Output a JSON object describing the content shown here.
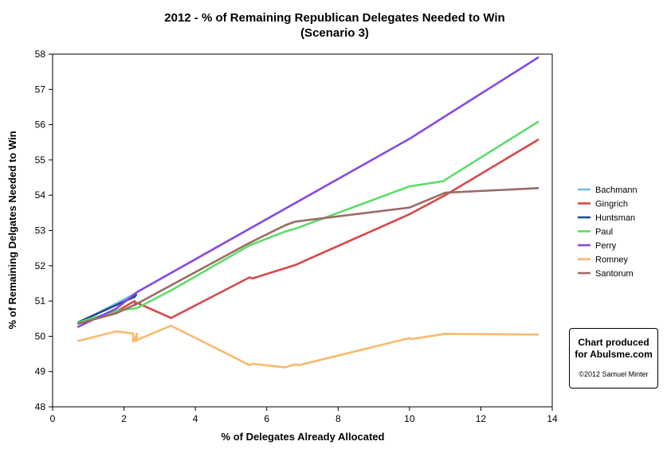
{
  "chart_data": {
    "type": "line",
    "title": "2012 - % of Remaining Republican Delegates Needed to Win",
    "subtitle": "(Scenario 3)",
    "xlabel": "% of Delegates Already Allocated",
    "ylabel": "% of Remaining Delgates Needed to Win",
    "xlim": [
      0,
      14
    ],
    "ylim": [
      48,
      58
    ],
    "x_ticks": [
      "0",
      "2",
      "4",
      "6",
      "8",
      "10",
      "12",
      "14"
    ],
    "y_ticks": [
      "48",
      "49",
      "50",
      "51",
      "52",
      "53",
      "54",
      "55",
      "56",
      "57",
      "58"
    ],
    "grid": false,
    "legend_position": "right",
    "series": [
      {
        "name": "Bachmann",
        "color": "#7bbde8",
        "points": [
          [
            0.72,
            50.38
          ],
          [
            2.3,
            51.2
          ]
        ]
      },
      {
        "name": "Gingrich",
        "color": "#d94848",
        "points": [
          [
            0.72,
            50.36
          ],
          [
            1.78,
            50.7
          ],
          [
            2.3,
            51.0
          ],
          [
            2.32,
            50.88
          ],
          [
            2.36,
            50.95
          ],
          [
            3.32,
            50.52
          ],
          [
            5.52,
            51.67
          ],
          [
            5.6,
            51.64
          ],
          [
            6.8,
            52.02
          ],
          [
            10.0,
            53.46
          ],
          [
            11.0,
            54.0
          ],
          [
            13.6,
            55.57
          ]
        ]
      },
      {
        "name": "Huntsman",
        "color": "#1f4e8c",
        "points": [
          [
            0.72,
            50.4
          ],
          [
            2.3,
            51.12
          ],
          [
            2.34,
            51.18
          ]
        ]
      },
      {
        "name": "Paul",
        "color": "#5ddc6a",
        "points": [
          [
            0.72,
            50.39
          ],
          [
            1.78,
            50.72
          ],
          [
            2.36,
            50.8
          ],
          [
            3.32,
            51.3
          ],
          [
            5.52,
            52.58
          ],
          [
            6.52,
            52.97
          ],
          [
            6.8,
            53.05
          ],
          [
            10.0,
            54.25
          ],
          [
            10.96,
            54.4
          ],
          [
            11.02,
            54.45
          ],
          [
            13.6,
            56.08
          ]
        ]
      },
      {
        "name": "Perry",
        "color": "#8348e6",
        "points": [
          [
            0.72,
            50.27
          ],
          [
            1.78,
            50.78
          ],
          [
            2.36,
            51.25
          ],
          [
            10.0,
            55.6
          ],
          [
            13.6,
            57.9
          ]
        ]
      },
      {
        "name": "Romney",
        "color": "#f9b96b",
        "points": [
          [
            0.72,
            49.87
          ],
          [
            1.78,
            50.14
          ],
          [
            2.26,
            50.08
          ],
          [
            2.26,
            49.85
          ],
          [
            2.26,
            49.95
          ],
          [
            2.36,
            49.95
          ],
          [
            2.36,
            49.88
          ],
          [
            2.36,
            50.08
          ],
          [
            2.3,
            49.87
          ],
          [
            3.32,
            50.3
          ],
          [
            5.52,
            49.18
          ],
          [
            5.6,
            49.22
          ],
          [
            6.52,
            49.12
          ],
          [
            6.8,
            49.2
          ],
          [
            6.9,
            49.18
          ],
          [
            10.0,
            49.95
          ],
          [
            10.06,
            49.92
          ],
          [
            11.0,
            50.07
          ],
          [
            13.6,
            50.05
          ]
        ]
      },
      {
        "name": "Santorum",
        "color": "#9b6b64",
        "points": [
          [
            0.72,
            50.36
          ],
          [
            1.78,
            50.65
          ],
          [
            2.36,
            50.92
          ],
          [
            5.52,
            52.65
          ],
          [
            6.52,
            53.15
          ],
          [
            6.8,
            53.25
          ],
          [
            10.0,
            53.65
          ],
          [
            11.0,
            54.07
          ],
          [
            13.6,
            54.2
          ]
        ]
      }
    ]
  },
  "credit": {
    "line1": "Chart produced",
    "line2": "for Abulsme.com",
    "copyright": "©2012 Samuel Minter"
  }
}
